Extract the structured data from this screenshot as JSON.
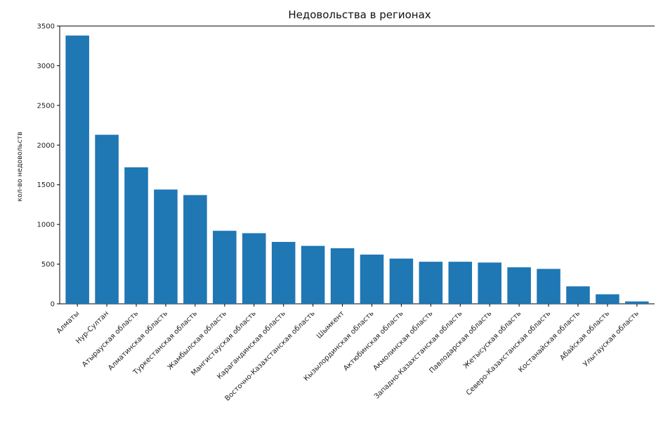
{
  "chart_data": {
    "type": "bar",
    "title": "Недовольства в регионах",
    "xlabel": "",
    "ylabel": "кол-во недовольств",
    "ylim": [
      0,
      3500
    ],
    "yticks": [
      0,
      500,
      1000,
      1500,
      2000,
      2500,
      3000,
      3500
    ],
    "grid": false,
    "bar_color": "#1f77b4",
    "categories": [
      "Алматы",
      "Нур-Султан",
      "Атырауская область",
      "Алматинская область",
      "Туркестанская область",
      "Жамбылская область",
      "Мангистауская область",
      "Карагандинская область",
      "Восточно-Казахстанская область",
      "Шымкент",
      "Кызылординская область",
      "Актюбинская область",
      "Акмолинская область",
      "Западно-Казахстанская область",
      "Павлодарская область",
      "Жетысуская область",
      "Северо-Казахстанская область",
      "Костанайская область",
      "Абайская область",
      "Улытауская область"
    ],
    "values": [
      3380,
      2130,
      1720,
      1440,
      1370,
      920,
      890,
      780,
      730,
      700,
      620,
      570,
      530,
      530,
      520,
      460,
      440,
      220,
      120,
      30
    ]
  }
}
